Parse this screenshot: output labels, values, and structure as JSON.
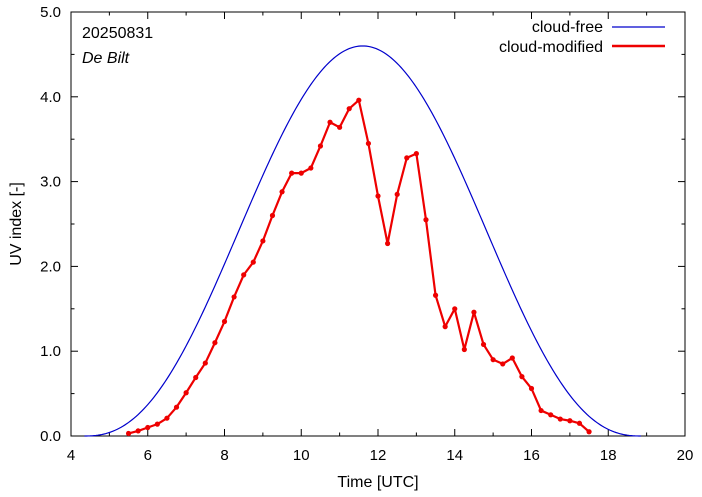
{
  "chart_data": {
    "type": "line",
    "title": "",
    "annotations": {
      "date": "20250831",
      "location": "De Bilt"
    },
    "xlabel": "Time  [UTC]",
    "ylabel": "UV index  [-]",
    "xlim": [
      4,
      20
    ],
    "ylim": [
      0,
      5
    ],
    "xticks": [
      "4",
      "6",
      "8",
      "10",
      "12",
      "14",
      "16",
      "18",
      "20"
    ],
    "yticks": [
      "0.0",
      "1.0",
      "2.0",
      "3.0",
      "4.0",
      "5.0"
    ],
    "grid": false,
    "legend_position": "top-right",
    "series": [
      {
        "name": "cloud-free",
        "color": "#0000cc",
        "curve": {
          "peak_time": 11.6,
          "peak_value": 4.6,
          "start": 4.35,
          "end": 18.85
        }
      },
      {
        "name": "cloud-modified",
        "color": "#ee0000",
        "x": [
          5.5,
          5.75,
          6.0,
          6.25,
          6.5,
          6.75,
          7.0,
          7.25,
          7.5,
          7.75,
          8.0,
          8.25,
          8.5,
          8.75,
          9.0,
          9.25,
          9.5,
          9.75,
          10.0,
          10.25,
          10.5,
          10.75,
          11.0,
          11.25,
          11.5,
          11.75,
          12.0,
          12.25,
          12.5,
          12.75,
          13.0,
          13.25,
          13.5,
          13.75,
          14.0,
          14.25,
          14.5,
          14.75,
          15.0,
          15.25,
          15.5,
          15.75,
          16.0,
          16.25,
          16.5,
          16.75,
          17.0,
          17.25,
          17.5
        ],
        "y": [
          0.03,
          0.06,
          0.1,
          0.14,
          0.21,
          0.34,
          0.51,
          0.69,
          0.86,
          1.1,
          1.35,
          1.64,
          1.9,
          2.05,
          2.3,
          2.6,
          2.88,
          3.1,
          3.1,
          3.16,
          3.42,
          3.7,
          3.64,
          3.86,
          3.96,
          3.45,
          2.83,
          2.27,
          2.85,
          3.28,
          3.33,
          2.55,
          1.66,
          1.29,
          1.5,
          1.02,
          1.46,
          1.08,
          0.9,
          0.85,
          0.92,
          0.7,
          0.56,
          0.3,
          0.25,
          0.2,
          0.18,
          0.15,
          0.05
        ]
      }
    ]
  }
}
